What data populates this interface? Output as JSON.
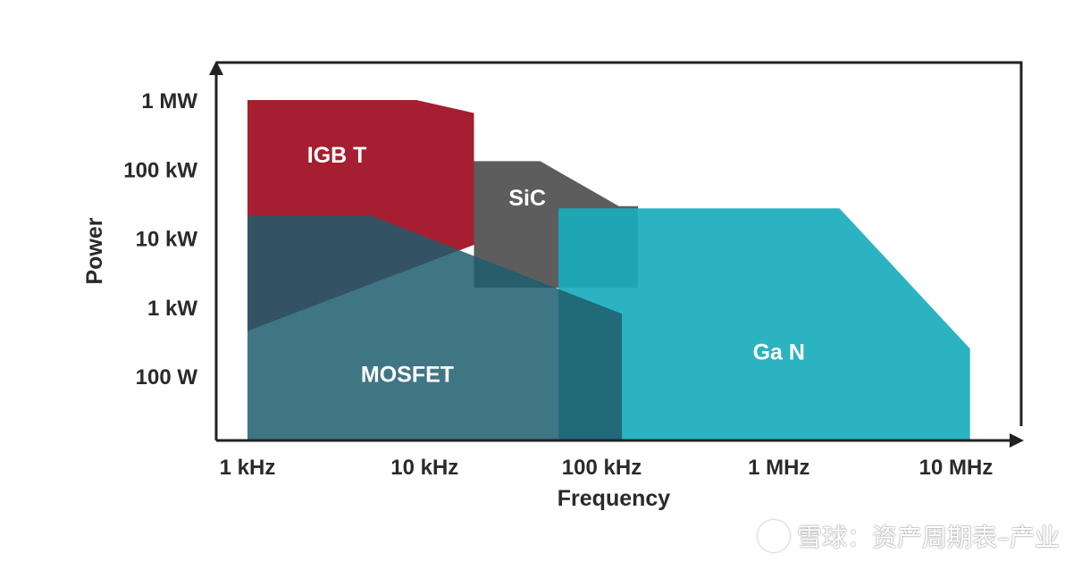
{
  "chart_data": {
    "type": "area",
    "title": "",
    "xlabel": "Frequency",
    "ylabel": "Power",
    "x_scale": "log",
    "y_scale": "log",
    "x_ticks": [
      {
        "value": 1000,
        "label": "1 kHz"
      },
      {
        "value": 10000,
        "label": "10 kHz"
      },
      {
        "value": 100000,
        "label": "100 kHz"
      },
      {
        "value": 1000000,
        "label": "1 MHz"
      },
      {
        "value": 10000000,
        "label": "10 MHz"
      }
    ],
    "y_ticks": [
      {
        "value": 100,
        "label": "100 W"
      },
      {
        "value": 1000,
        "label": "1 kW"
      },
      {
        "value": 10000,
        "label": "10 kW"
      },
      {
        "value": 100000,
        "label": "100 kW"
      },
      {
        "value": 1000000,
        "label": "1 MW"
      }
    ],
    "regions": [
      {
        "name": "SiC",
        "color": "#4f4f4f",
        "opacity": 0.92,
        "points": [
          [
            19000,
            1900
          ],
          [
            19000,
            130000
          ],
          [
            45000,
            130000
          ],
          [
            125000,
            29000
          ],
          [
            160000,
            29000
          ],
          [
            160000,
            1900
          ]
        ],
        "label_at": [
          38000,
          36000
        ]
      },
      {
        "name": "IGB T",
        "color": "#a51f30",
        "opacity": 1,
        "points": [
          [
            1000,
            450
          ],
          [
            1000,
            1000000
          ],
          [
            9000,
            1000000
          ],
          [
            19000,
            650000
          ],
          [
            19000,
            8000
          ]
        ],
        "label_at": [
          3200,
          150000
        ]
      },
      {
        "name": "Ga N",
        "color": "#1aacbc",
        "opacity": 0.92,
        "points": [
          [
            57000,
            8
          ],
          [
            57000,
            27000
          ],
          [
            2200000,
            27000
          ],
          [
            12000000,
            250
          ],
          [
            12000000,
            8
          ]
        ],
        "label_at": [
          1000000,
          210
        ]
      },
      {
        "name": "MOSFET",
        "color": "#1e5d6d",
        "opacity": 0.85,
        "points": [
          [
            1000,
            8
          ],
          [
            1000,
            21000
          ],
          [
            5000,
            21000
          ],
          [
            130000,
            800
          ],
          [
            130000,
            8
          ]
        ],
        "label_at": [
          8000,
          100
        ]
      }
    ],
    "grid": false,
    "legend": "none"
  },
  "watermark": {
    "logo_icon": "snowball-logo-icon",
    "text": "雪球：资产周期表–产业"
  }
}
